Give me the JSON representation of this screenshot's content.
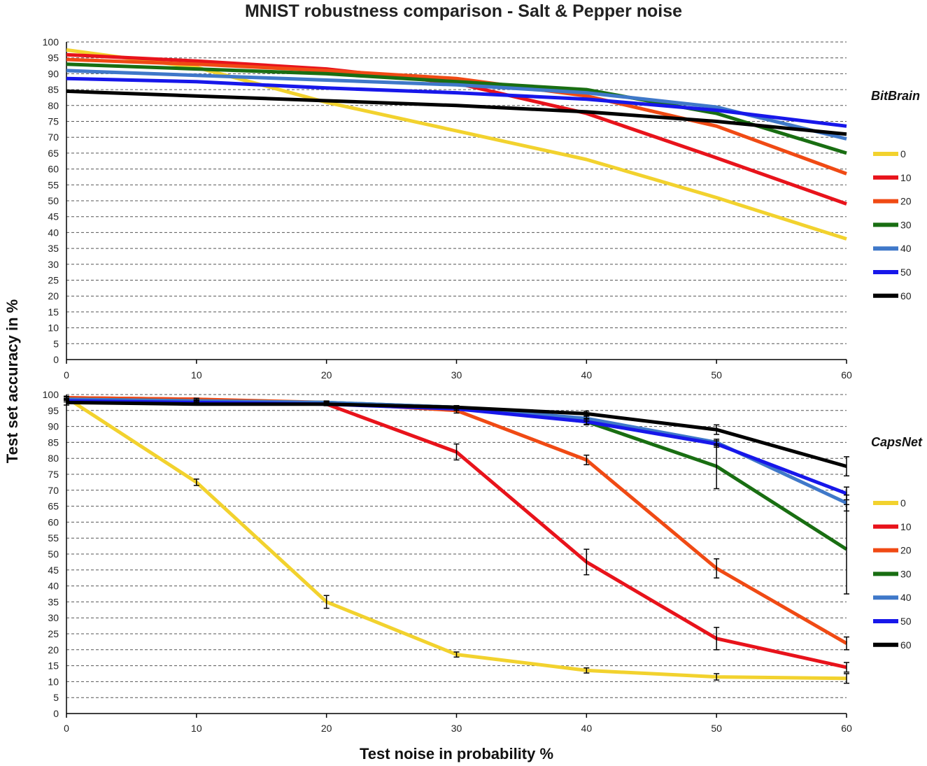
{
  "figure": {
    "title": "MNIST robustness comparison - Salt & Pepper noise",
    "ylabel": "Test set accuracy in %",
    "xlabel": "Test noise in probability %"
  },
  "colors": {
    "0": "#f2d22e",
    "10": "#e8131b",
    "20": "#f04a14",
    "30": "#196e12",
    "40": "#3f78c9",
    "50": "#1717ea",
    "60": "#000000"
  },
  "chart_data": [
    {
      "type": "line",
      "name": "BitBrain",
      "x": [
        0,
        10,
        20,
        30,
        40,
        50,
        60
      ],
      "xlim": [
        0,
        60
      ],
      "ylim": [
        0,
        100
      ],
      "xticks": [
        0,
        10,
        20,
        30,
        40,
        50,
        60
      ],
      "yticks": [
        0,
        5,
        10,
        15,
        20,
        25,
        30,
        35,
        40,
        45,
        50,
        55,
        60,
        65,
        70,
        75,
        80,
        85,
        90,
        95,
        100
      ],
      "grid": "horizontal dashed",
      "legend": "right",
      "series": [
        {
          "name": "0",
          "values": [
            97.5,
            92,
            81,
            72,
            63,
            51,
            38
          ]
        },
        {
          "name": "10",
          "values": [
            96,
            94,
            91.5,
            87,
            77.5,
            63.5,
            49
          ]
        },
        {
          "name": "20",
          "values": [
            94.5,
            93,
            91,
            88.5,
            83,
            73.5,
            58.5
          ]
        },
        {
          "name": "30",
          "values": [
            93,
            91.5,
            90,
            87.5,
            85,
            77.5,
            65
          ]
        },
        {
          "name": "40",
          "values": [
            91,
            89.5,
            88,
            86.5,
            84,
            79.5,
            69.5
          ]
        },
        {
          "name": "50",
          "values": [
            88.5,
            87.5,
            85.5,
            84,
            82,
            78.5,
            73.5
          ]
        },
        {
          "name": "60",
          "values": [
            84.5,
            83,
            81.5,
            80,
            78,
            75,
            71
          ]
        }
      ]
    },
    {
      "type": "line",
      "name": "CapsNet",
      "x": [
        0,
        10,
        20,
        30,
        40,
        50,
        60
      ],
      "xlim": [
        0,
        60
      ],
      "ylim": [
        0,
        100
      ],
      "xticks": [
        0,
        10,
        20,
        30,
        40,
        50,
        60
      ],
      "yticks": [
        0,
        5,
        10,
        15,
        20,
        25,
        30,
        35,
        40,
        45,
        50,
        55,
        60,
        65,
        70,
        75,
        80,
        85,
        90,
        95,
        100
      ],
      "grid": "horizontal dashed",
      "legend": "right",
      "series": [
        {
          "name": "0",
          "values": [
            99,
            72.5,
            35,
            18.5,
            13.5,
            11.5,
            11
          ],
          "errors": [
            0.5,
            1,
            2,
            0.8,
            0.8,
            1,
            1.5
          ]
        },
        {
          "name": "10",
          "values": [
            99,
            98.5,
            97,
            82,
            47.5,
            23.5,
            14.5
          ],
          "errors": [
            0.3,
            0.3,
            0.5,
            2.5,
            4,
            3.5,
            1.5
          ]
        },
        {
          "name": "20",
          "values": [
            99,
            98.5,
            97.5,
            95,
            79.5,
            45.5,
            22
          ],
          "errors": [
            0.3,
            0.3,
            0.5,
            0.8,
            1.5,
            3,
            2
          ]
        },
        {
          "name": "30",
          "values": [
            98.5,
            98,
            97.5,
            96,
            91.5,
            77.5,
            51.5
          ],
          "errors": [
            0.3,
            0.3,
            0.3,
            0.5,
            1,
            7,
            14
          ]
        },
        {
          "name": "40",
          "values": [
            98.5,
            98,
            97.5,
            96,
            92.5,
            85,
            66
          ],
          "errors": [
            0.3,
            0.3,
            0.3,
            0.5,
            0.8,
            1,
            2.5
          ]
        },
        {
          "name": "50",
          "values": [
            98,
            97.5,
            97,
            95.5,
            91.5,
            84.5,
            69
          ],
          "errors": [
            0.3,
            0.3,
            0.3,
            0.5,
            0.8,
            1,
            2
          ]
        },
        {
          "name": "60",
          "values": [
            97.5,
            97,
            97,
            96,
            94,
            89,
            77.5
          ],
          "errors": [
            0.8,
            0.3,
            0.3,
            0.5,
            0.8,
            1.5,
            3
          ]
        }
      ]
    }
  ]
}
